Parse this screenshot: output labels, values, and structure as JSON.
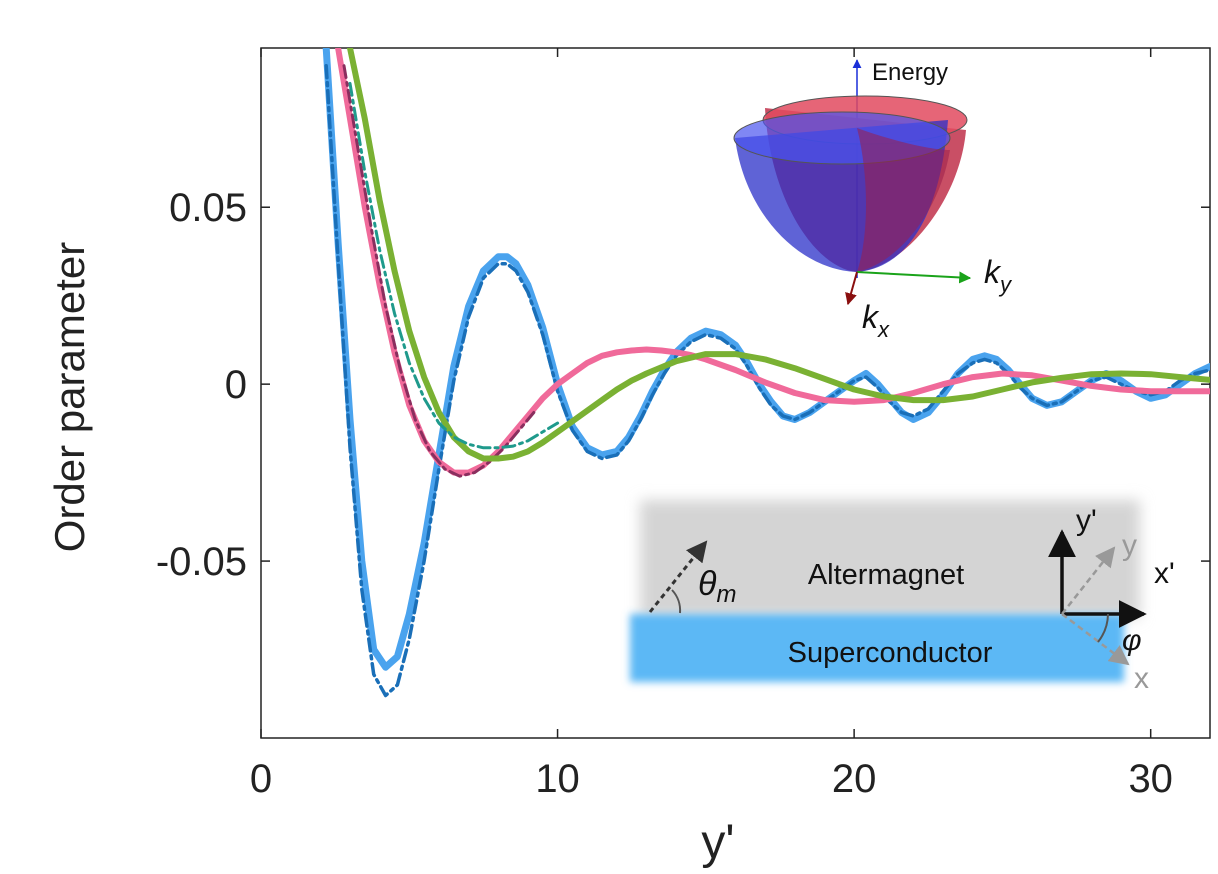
{
  "chart_data": {
    "type": "line",
    "xlabel": "y'",
    "ylabel": "Order parameter",
    "xlim": [
      0,
      32
    ],
    "ylim": [
      -0.1,
      0.095
    ],
    "xticks": [
      0,
      10,
      20,
      30
    ],
    "xtick_labels": [
      "0",
      "10",
      "20",
      "30"
    ],
    "yticks": [
      -0.05,
      0,
      0.05
    ],
    "ytick_labels": [
      "-0.05",
      "0",
      "0.05"
    ],
    "grid": false,
    "legend": "none",
    "colors": {
      "blue": "#4aa3ee",
      "blue_dashed": "#1a6fb8",
      "pink": "#f06a9a",
      "pink_dashed": "#8a2e5e",
      "green": "#7ab133",
      "green_dashed": "#1f9a8c"
    },
    "series": [
      {
        "color": "blue",
        "style": "solid",
        "width": 7,
        "x": [
          2.2,
          2.6,
          3.0,
          3.4,
          3.8,
          4.2,
          4.6,
          5.0,
          5.5,
          6.0,
          6.5,
          7.0,
          7.5,
          8.0,
          8.3,
          8.6,
          9.0,
          9.5,
          10.0,
          10.5,
          11.0,
          11.5,
          12.0,
          12.4,
          12.8,
          13.2,
          13.6,
          14.0,
          14.5,
          15.0,
          15.5,
          16.0,
          16.4,
          16.8,
          17.2,
          17.6,
          18.0,
          18.5,
          19.0,
          19.5,
          20.0,
          20.4,
          20.8,
          21.2,
          21.6,
          22.0,
          22.5,
          23.0,
          23.5,
          24.0,
          24.4,
          24.8,
          25.2,
          25.6,
          26.0,
          26.5,
          27.0,
          27.5,
          28.0,
          28.5,
          29.0,
          29.5,
          30.0,
          30.5,
          31.0,
          31.5,
          32.0
        ],
        "y": [
          0.095,
          0.04,
          -0.01,
          -0.05,
          -0.075,
          -0.08,
          -0.077,
          -0.065,
          -0.045,
          -0.02,
          0.005,
          0.022,
          0.032,
          0.036,
          0.036,
          0.034,
          0.028,
          0.016,
          0.0,
          -0.012,
          -0.018,
          -0.02,
          -0.019,
          -0.015,
          -0.009,
          -0.002,
          0.004,
          0.009,
          0.013,
          0.015,
          0.014,
          0.011,
          0.006,
          0.0,
          -0.005,
          -0.009,
          -0.01,
          -0.008,
          -0.005,
          -0.002,
          0.001,
          0.003,
          0.0,
          -0.004,
          -0.008,
          -0.01,
          -0.008,
          -0.003,
          0.003,
          0.007,
          0.008,
          0.007,
          0.004,
          0.0,
          -0.004,
          -0.006,
          -0.005,
          -0.002,
          0.001,
          0.003,
          0.001,
          -0.002,
          -0.004,
          -0.003,
          0.0,
          0.003,
          0.005
        ]
      },
      {
        "color": "blue_dashed",
        "style": "dashdot",
        "width": 3.5,
        "x": [
          2.2,
          2.6,
          3.0,
          3.4,
          3.8,
          4.2,
          4.6,
          5.0,
          5.5,
          6.0,
          6.5,
          7.0,
          7.5,
          8.0,
          8.3,
          8.6,
          9.0,
          9.5,
          10.0,
          10.5,
          11.0,
          11.5,
          12.0,
          12.4,
          12.8,
          13.2,
          13.6,
          14.0,
          14.5,
          15.0,
          15.5,
          16.0,
          16.4,
          16.8,
          17.2,
          17.6,
          18.0,
          18.5,
          19.0,
          19.5,
          20.0,
          20.4,
          20.8,
          21.2,
          21.6,
          22.0,
          22.5,
          23.0,
          23.5,
          24.0,
          24.4,
          24.8,
          25.2,
          25.6,
          26.0,
          26.5,
          27.0,
          27.5,
          28.0,
          28.5,
          29.0,
          29.5,
          30.0,
          30.5,
          31.0,
          31.5,
          32.0
        ],
        "y": [
          0.09,
          0.035,
          -0.018,
          -0.058,
          -0.082,
          -0.088,
          -0.085,
          -0.072,
          -0.05,
          -0.024,
          0.001,
          0.019,
          0.03,
          0.034,
          0.034,
          0.032,
          0.026,
          0.014,
          -0.002,
          -0.013,
          -0.019,
          -0.021,
          -0.02,
          -0.016,
          -0.01,
          -0.003,
          0.003,
          0.008,
          0.012,
          0.014,
          0.013,
          0.01,
          0.005,
          -0.001,
          -0.006,
          -0.009,
          -0.01,
          -0.008,
          -0.005,
          -0.002,
          0.001,
          0.002,
          -0.001,
          -0.005,
          -0.008,
          -0.009,
          -0.007,
          -0.002,
          0.003,
          0.006,
          0.007,
          0.006,
          0.003,
          -0.001,
          -0.004,
          -0.006,
          -0.005,
          -0.002,
          0.001,
          0.002,
          0.0,
          -0.002,
          -0.003,
          -0.002,
          0.001,
          0.003,
          0.004
        ]
      },
      {
        "color": "pink",
        "style": "solid",
        "width": 6,
        "x": [
          2.6,
          3.0,
          3.5,
          4.0,
          4.5,
          5.0,
          5.5,
          6.0,
          6.5,
          7.0,
          7.5,
          8.0,
          8.5,
          9.0,
          9.5,
          10.0,
          10.5,
          11.0,
          11.5,
          12.0,
          12.5,
          13.0,
          13.5,
          14.0,
          14.5,
          15.0,
          16.0,
          17.0,
          18.0,
          19.0,
          20.0,
          21.0,
          22.0,
          23.0,
          24.0,
          25.0,
          26.0,
          27.0,
          28.0,
          29.0,
          30.0,
          31.0,
          32.0
        ],
        "y": [
          0.095,
          0.075,
          0.05,
          0.028,
          0.009,
          -0.006,
          -0.016,
          -0.022,
          -0.025,
          -0.025,
          -0.023,
          -0.019,
          -0.014,
          -0.009,
          -0.004,
          0.0,
          0.003,
          0.006,
          0.008,
          0.009,
          0.0095,
          0.0098,
          0.0095,
          0.009,
          0.0082,
          0.007,
          0.004,
          0.0005,
          -0.0025,
          -0.0045,
          -0.005,
          -0.0045,
          -0.0025,
          0.0,
          0.002,
          0.003,
          0.0025,
          0.001,
          -0.0005,
          -0.0015,
          -0.002,
          -0.002,
          -0.002
        ]
      },
      {
        "color": "pink_dashed",
        "style": "dashdot",
        "width": 3,
        "x": [
          2.8,
          3.2,
          3.7,
          4.2,
          4.7,
          5.2,
          5.7,
          6.2,
          6.7,
          7.2,
          7.7,
          8.2,
          8.7,
          9.2
        ],
        "y": [
          0.09,
          0.07,
          0.045,
          0.022,
          0.004,
          -0.01,
          -0.019,
          -0.024,
          -0.026,
          -0.025,
          -0.022,
          -0.018,
          -0.013,
          -0.008
        ]
      },
      {
        "color": "green",
        "style": "solid",
        "width": 6,
        "x": [
          3.0,
          3.5,
          4.0,
          4.5,
          5.0,
          5.5,
          6.0,
          6.5,
          7.0,
          7.5,
          8.0,
          8.5,
          9.0,
          9.5,
          10.0,
          10.5,
          11.0,
          11.5,
          12.0,
          12.5,
          13.0,
          14.0,
          15.0,
          16.0,
          17.0,
          18.0,
          19.0,
          20.0,
          21.0,
          22.0,
          23.0,
          24.0,
          25.0,
          26.0,
          27.0,
          28.0,
          29.0,
          30.0,
          31.0,
          32.0
        ],
        "y": [
          0.095,
          0.075,
          0.052,
          0.032,
          0.015,
          0.002,
          -0.008,
          -0.015,
          -0.019,
          -0.021,
          -0.021,
          -0.0205,
          -0.019,
          -0.0165,
          -0.0135,
          -0.0105,
          -0.0075,
          -0.0045,
          -0.0015,
          0.001,
          0.003,
          0.0065,
          0.0085,
          0.0085,
          0.007,
          0.0045,
          0.0015,
          -0.0015,
          -0.0035,
          -0.0045,
          -0.0045,
          -0.0035,
          -0.0015,
          0.0005,
          0.0018,
          0.0028,
          0.003,
          0.0028,
          0.002,
          0.0012
        ]
      },
      {
        "color": "green_dashed",
        "style": "dashdot",
        "width": 3,
        "x": [
          3.0,
          3.5,
          4.0,
          4.5,
          5.0,
          5.5,
          6.0,
          6.5,
          7.0,
          7.5,
          8.0,
          8.5,
          9.0,
          9.5,
          10.0
        ],
        "y": [
          0.085,
          0.06,
          0.038,
          0.02,
          0.006,
          -0.004,
          -0.011,
          -0.015,
          -0.017,
          -0.018,
          -0.018,
          -0.0175,
          -0.016,
          -0.0135,
          -0.011
        ]
      }
    ]
  },
  "inset_band": {
    "altermagnet_label": "Altermagnet",
    "superconductor_label": "Superconductor",
    "theta_label": "θ",
    "theta_sub": "m",
    "yprime_label": "y'",
    "xprime_label": "x'",
    "y_label": "y",
    "x_label": "x",
    "phi_label": "φ"
  },
  "inset_bands": {
    "energy_label": "Energy",
    "ky_label": "k",
    "ky_sub": "y",
    "kx_label": "k",
    "kx_sub": "x"
  }
}
